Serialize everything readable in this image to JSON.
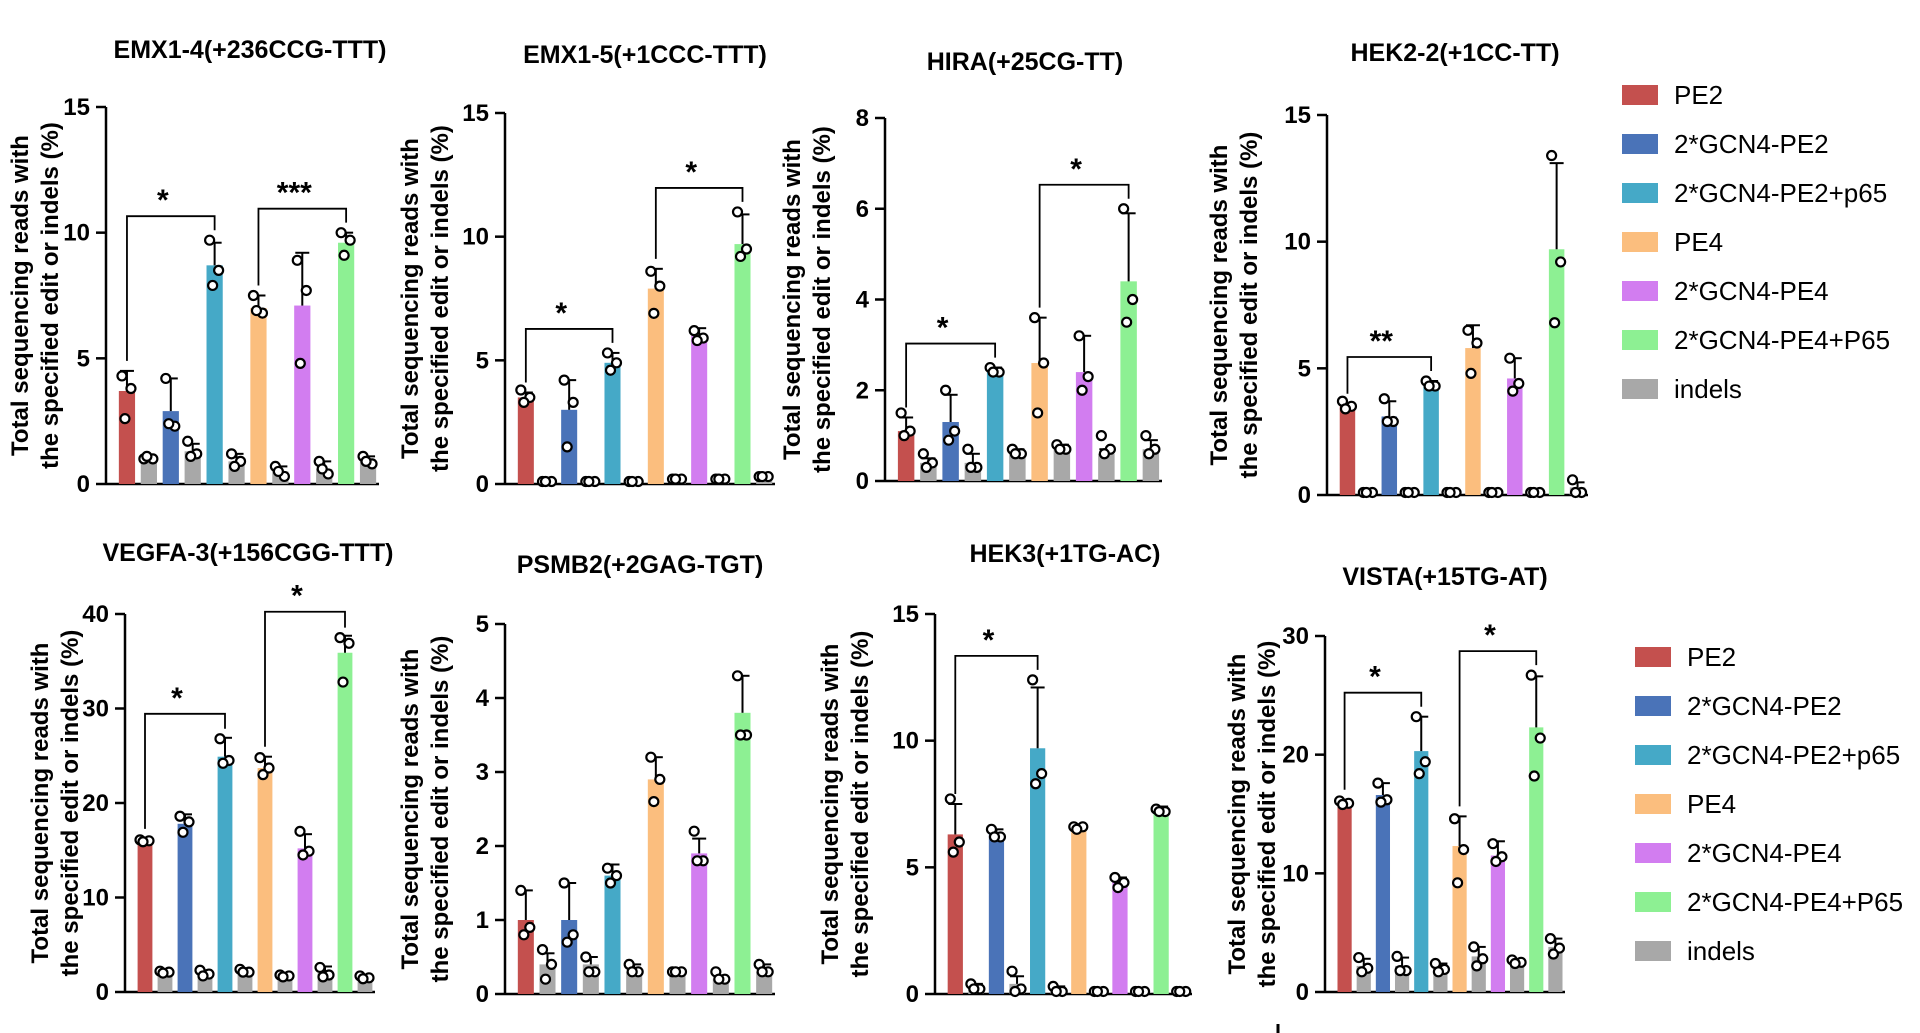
{
  "legend_top": [
    {
      "name": "PE2",
      "color": "#C4504E"
    },
    {
      "name": "2*GCN4-PE2",
      "color": "#4A73B8"
    },
    {
      "name": "2*GCN4-PE2+p65",
      "color": "#45A9C7"
    },
    {
      "name": "PE4",
      "color": "#FBBE7E"
    },
    {
      "name": "2*GCN4-PE4",
      "color": "#D27DF0"
    },
    {
      "name": "2*GCN4-PE4+P65",
      "color": "#8DF093"
    },
    {
      "name": "indels",
      "color": "#A8A8A8"
    }
  ],
  "legend_bottom": [
    {
      "name": "PE2",
      "color": "#C4504E"
    },
    {
      "name": "2*GCN4-PE2",
      "color": "#4A73B8"
    },
    {
      "name": "2*GCN4-PE2+p65",
      "color": "#45A9C7"
    },
    {
      "name": "PE4",
      "color": "#FBBE7E"
    },
    {
      "name": "2*GCN4-PE4",
      "color": "#D27DF0"
    },
    {
      "name": "2*GCN4-PE4+P65",
      "color": "#8DF093"
    },
    {
      "name": "indels",
      "color": "#A8A8A8"
    }
  ],
  "chart_data": [
    {
      "type": "bar",
      "title": "EMX1-4(+236CCG-TTT)",
      "ylabel": [
        "Total sequencing reads with",
        "the specified edit or indels (%)"
      ],
      "ylim": [
        0,
        15
      ],
      "yticks": [
        0,
        5,
        10,
        15
      ],
      "series_order": [
        "PE2",
        "indels",
        "2*GCN4-PE2",
        "indels",
        "2*GCN4-PE2+p65",
        "indels",
        "PE4",
        "indels",
        "2*GCN4-PE4",
        "indels",
        "2*GCN4-PE4+P65",
        "indels"
      ],
      "values": [
        3.7,
        1.0,
        2.9,
        1.3,
        8.7,
        0.9,
        7.0,
        0.5,
        7.1,
        0.6,
        9.6,
        0.9
      ],
      "errors": [
        0.8,
        0.1,
        1.3,
        0.3,
        0.9,
        0.3,
        0.5,
        0.2,
        2.1,
        0.3,
        0.4,
        0.2
      ],
      "points": [
        [
          4.3,
          3.8,
          2.6
        ],
        [
          1.0,
          1.0,
          1.1
        ],
        [
          4.2,
          2.3,
          2.4
        ],
        [
          1.7,
          1.2,
          1.1
        ],
        [
          9.7,
          8.5,
          7.9
        ],
        [
          1.2,
          0.9,
          0.7
        ],
        [
          7.5,
          6.8,
          6.9
        ],
        [
          0.7,
          0.3,
          0.5
        ],
        [
          8.9,
          7.7,
          4.8
        ],
        [
          0.9,
          0.4,
          0.6
        ],
        [
          10.0,
          9.7,
          9.1
        ],
        [
          1.1,
          0.8,
          0.9
        ]
      ],
      "significance": [
        {
          "from": 0,
          "to": 4,
          "label": "*"
        },
        {
          "from": 6,
          "to": 10,
          "label": "***"
        }
      ]
    },
    {
      "type": "bar",
      "title": "EMX1-5(+1CCC-TTT)",
      "ylabel": [
        "Total sequencing reads with",
        "the specified edit or indels (%)"
      ],
      "ylim": [
        0,
        15
      ],
      "yticks": [
        0,
        5,
        10,
        15
      ],
      "series_order": [
        "PE2",
        "indels",
        "2*GCN4-PE2",
        "indels",
        "2*GCN4-PE2+p65",
        "indels",
        "PE4",
        "indels",
        "2*GCN4-PE4",
        "indels",
        "2*GCN4-PE4+P65",
        "indels"
      ],
      "values": [
        3.5,
        0.1,
        3.0,
        0.1,
        4.9,
        0.1,
        7.9,
        0.2,
        6.0,
        0.2,
        9.7,
        0.3
      ],
      "errors": [
        0.2,
        0.05,
        1.2,
        0.05,
        0.4,
        0.05,
        0.8,
        0.05,
        0.3,
        0.05,
        1.2,
        0.05
      ],
      "points": [
        [
          3.8,
          3.5,
          3.3
        ],
        [
          0.1,
          0.1,
          0.1
        ],
        [
          4.2,
          3.3,
          1.5
        ],
        [
          0.1,
          0.1,
          0.1
        ],
        [
          5.3,
          4.9,
          4.6
        ],
        [
          0.1,
          0.1,
          0.1
        ],
        [
          8.6,
          8.0,
          6.9
        ],
        [
          0.2,
          0.2,
          0.2
        ],
        [
          6.2,
          5.9,
          5.8
        ],
        [
          0.2,
          0.2,
          0.2
        ],
        [
          11.0,
          9.5,
          9.2
        ],
        [
          0.3,
          0.3,
          0.3
        ]
      ],
      "significance": [
        {
          "from": 0,
          "to": 4,
          "label": "*"
        },
        {
          "from": 6,
          "to": 10,
          "label": "*"
        }
      ]
    },
    {
      "type": "bar",
      "title": "HIRA(+25CG-TT)",
      "ylabel": [
        "Total sequencing reads with",
        "the specified edit or indels (%)"
      ],
      "ylim": [
        0,
        8
      ],
      "yticks": [
        0,
        2,
        4,
        6,
        8
      ],
      "series_order": [
        "PE2",
        "indels",
        "2*GCN4-PE2",
        "indels",
        "2*GCN4-PE2+p65",
        "indels",
        "PE4",
        "indels",
        "2*GCN4-PE4",
        "indels",
        "2*GCN4-PE4+P65",
        "indels"
      ],
      "values": [
        1.1,
        0.4,
        1.3,
        0.4,
        2.4,
        0.6,
        2.6,
        0.7,
        2.4,
        0.6,
        4.4,
        0.7
      ],
      "errors": [
        0.3,
        0.1,
        0.6,
        0.2,
        0.1,
        0.1,
        1.0,
        0.1,
        0.8,
        0.1,
        1.5,
        0.2
      ],
      "points": [
        [
          1.5,
          1.1,
          1.0
        ],
        [
          0.6,
          0.4,
          0.3
        ],
        [
          2.0,
          1.1,
          0.9
        ],
        [
          0.7,
          0.3,
          0.3
        ],
        [
          2.5,
          2.4,
          2.4
        ],
        [
          0.7,
          0.6,
          0.6
        ],
        [
          3.6,
          2.6,
          1.5
        ],
        [
          0.8,
          0.7,
          0.7
        ],
        [
          3.2,
          2.3,
          2.0
        ],
        [
          1.0,
          0.7,
          0.6
        ],
        [
          6.0,
          4.0,
          3.5
        ],
        [
          1.0,
          0.7,
          0.6
        ]
      ],
      "significance": [
        {
          "from": 0,
          "to": 4,
          "label": "*"
        },
        {
          "from": 6,
          "to": 10,
          "label": "*"
        }
      ]
    },
    {
      "type": "bar",
      "title": "HEK2-2(+1CC-TT)",
      "ylabel": [
        "Total sequencing reads with",
        "the specified edit or indels (%)"
      ],
      "ylim": [
        0,
        15
      ],
      "yticks": [
        0,
        5,
        10,
        15
      ],
      "series_order": [
        "PE2",
        "indels",
        "2*GCN4-PE2",
        "indels",
        "2*GCN4-PE2+p65",
        "indels",
        "PE4",
        "indels",
        "2*GCN4-PE4",
        "indels",
        "2*GCN4-PE4+P65",
        "indels"
      ],
      "values": [
        3.5,
        0.1,
        3.1,
        0.1,
        4.3,
        0.1,
        5.8,
        0.1,
        4.6,
        0.1,
        9.7,
        0.3
      ],
      "errors": [
        0.1,
        0.05,
        0.6,
        0.05,
        0.2,
        0.05,
        0.9,
        0.05,
        0.8,
        0.05,
        3.4,
        0.2
      ],
      "points": [
        [
          3.7,
          3.5,
          3.4
        ],
        [
          0.1,
          0.1,
          0.1
        ],
        [
          3.8,
          2.9,
          2.9
        ],
        [
          0.1,
          0.1,
          0.1
        ],
        [
          4.5,
          4.3,
          4.3
        ],
        [
          0.1,
          0.1,
          0.1
        ],
        [
          6.5,
          6.0,
          4.8
        ],
        [
          0.1,
          0.1,
          0.1
        ],
        [
          5.4,
          4.4,
          4.1
        ],
        [
          0.1,
          0.1,
          0.1
        ],
        [
          13.4,
          9.2,
          6.8
        ],
        [
          0.6,
          0.1,
          0.1
        ]
      ],
      "significance": [
        {
          "from": 0,
          "to": 4,
          "label": "**"
        }
      ]
    },
    {
      "type": "bar",
      "title": "VEGFA-3(+156CGG-TTT)",
      "ylabel": [
        "Total sequencing reads with",
        "the specified edit or indels (%)"
      ],
      "ylim": [
        0,
        40
      ],
      "yticks": [
        0,
        10,
        20,
        30,
        40
      ],
      "series_order": [
        "PE2",
        "indels",
        "2*GCN4-PE2",
        "indels",
        "2*GCN4-PE2+p65",
        "indels",
        "PE4",
        "indels",
        "2*GCN4-PE4",
        "indels",
        "2*GCN4-PE4+P65",
        "indels"
      ],
      "values": [
        16.0,
        2.1,
        17.8,
        2.0,
        24.9,
        2.2,
        23.7,
        1.7,
        15.2,
        2.0,
        35.9,
        1.5
      ],
      "errors": [
        0.2,
        0.2,
        1.0,
        0.3,
        2.0,
        0.3,
        1.2,
        0.2,
        1.5,
        0.7,
        1.8,
        0.2
      ],
      "points": [
        [
          16.1,
          16.0,
          15.9
        ],
        [
          2.2,
          2.1,
          2.0
        ],
        [
          18.6,
          18.0,
          16.9
        ],
        [
          2.3,
          1.9,
          1.7
        ],
        [
          26.8,
          24.5,
          24.2
        ],
        [
          2.4,
          2.1,
          2.1
        ],
        [
          24.8,
          23.7,
          23.0
        ],
        [
          1.8,
          1.7,
          1.6
        ],
        [
          17.0,
          14.9,
          14.5
        ],
        [
          2.6,
          1.8,
          1.6
        ],
        [
          37.5,
          36.9,
          32.8
        ],
        [
          1.7,
          1.5,
          1.4
        ]
      ],
      "significance": [
        {
          "from": 0,
          "to": 4,
          "label": "*"
        },
        {
          "from": 6,
          "to": 10,
          "label": "*"
        }
      ]
    },
    {
      "type": "bar",
      "title": "PSMB2(+2GAG-TGT)",
      "ylabel": [
        "Total sequencing reads with",
        "the specified edit or indels (%)"
      ],
      "ylim": [
        0,
        5
      ],
      "yticks": [
        0,
        1,
        2,
        3,
        4,
        5
      ],
      "series_order": [
        "PE2",
        "indels",
        "2*GCN4-PE2",
        "indels",
        "2*GCN4-PE2+p65",
        "indels",
        "PE4",
        "indels",
        "2*GCN4-PE4",
        "indels",
        "2*GCN4-PE4+P65",
        "indels"
      ],
      "values": [
        1.0,
        0.4,
        1.0,
        0.4,
        1.6,
        0.3,
        2.9,
        0.3,
        1.9,
        0.2,
        3.8,
        0.3
      ],
      "errors": [
        0.4,
        0.15,
        0.5,
        0.1,
        0.15,
        0.1,
        0.3,
        0.05,
        0.2,
        0.05,
        0.5,
        0.1
      ],
      "points": [
        [
          1.4,
          0.9,
          0.8
        ],
        [
          0.6,
          0.4,
          0.2
        ],
        [
          1.5,
          0.8,
          0.7
        ],
        [
          0.5,
          0.3,
          0.3
        ],
        [
          1.7,
          1.6,
          1.5
        ],
        [
          0.4,
          0.3,
          0.3
        ],
        [
          3.2,
          2.9,
          2.6
        ],
        [
          0.3,
          0.3,
          0.3
        ],
        [
          2.2,
          1.8,
          1.8
        ],
        [
          0.3,
          0.2,
          0.2
        ],
        [
          4.3,
          3.5,
          3.5
        ],
        [
          0.4,
          0.3,
          0.3
        ]
      ],
      "significance": []
    },
    {
      "type": "bar",
      "title": "HEK3(+1TG-AC)",
      "ylabel": [
        "Total sequencing reads with",
        "the specified edit or indels (%)"
      ],
      "ylim": [
        0,
        15
      ],
      "yticks": [
        0,
        5,
        10,
        15
      ],
      "series_order": [
        "PE2",
        "indels",
        "2*GCN4-PE2",
        "indels",
        "2*GCN4-PE2+p65",
        "indels",
        "PE4",
        "indels",
        "2*GCN4-PE4",
        "indels",
        "2*GCN4-PE4+P65",
        "indels"
      ],
      "values": [
        6.3,
        0.3,
        6.3,
        0.4,
        9.7,
        0.2,
        6.6,
        0.1,
        4.4,
        0.1,
        7.2,
        0.1
      ],
      "errors": [
        1.2,
        0.1,
        0.2,
        0.3,
        2.4,
        0.1,
        0.1,
        0.05,
        0.2,
        0.05,
        0.2,
        0.05
      ],
      "points": [
        [
          7.7,
          6.0,
          5.6
        ],
        [
          0.4,
          0.2,
          0.2
        ],
        [
          6.5,
          6.2,
          6.2
        ],
        [
          0.9,
          0.2,
          0.1
        ],
        [
          12.4,
          8.7,
          8.3
        ],
        [
          0.3,
          0.1,
          0.1
        ],
        [
          6.6,
          6.6,
          6.5
        ],
        [
          0.1,
          0.1,
          0.1
        ],
        [
          4.6,
          4.4,
          4.2
        ],
        [
          0.1,
          0.1,
          0.1
        ],
        [
          7.3,
          7.2,
          7.2
        ],
        [
          0.1,
          0.1,
          0.1
        ]
      ],
      "significance": [
        {
          "from": 0,
          "to": 4,
          "label": "*"
        }
      ]
    },
    {
      "type": "bar",
      "title": "VISTA(+15TG-AT)",
      "ylabel": [
        "Total sequencing reads with",
        "the specified edit or indels (%)"
      ],
      "ylim": [
        0,
        30
      ],
      "yticks": [
        0,
        10,
        20,
        30
      ],
      "series_order": [
        "PE2",
        "indels",
        "2*GCN4-PE2",
        "indels",
        "2*GCN4-PE2+p65",
        "indels",
        "PE4",
        "indels",
        "2*GCN4-PE4",
        "indels",
        "2*GCN4-PE4+P65",
        "indels"
      ],
      "values": [
        15.9,
        2.2,
        16.6,
        2.2,
        20.3,
        2.0,
        12.3,
        3.0,
        11.5,
        2.5,
        22.3,
        3.8
      ],
      "errors": [
        0.3,
        0.6,
        1.0,
        0.7,
        2.9,
        0.4,
        2.5,
        0.8,
        1.2,
        0.2,
        4.3,
        0.7
      ],
      "points": [
        [
          16.1,
          15.9,
          15.8
        ],
        [
          2.9,
          2.0,
          1.7
        ],
        [
          17.6,
          16.2,
          16.0
        ],
        [
          3.0,
          1.8,
          1.8
        ],
        [
          23.2,
          19.4,
          18.4
        ],
        [
          2.4,
          1.9,
          1.7
        ],
        [
          14.6,
          12.0,
          9.2
        ],
        [
          3.8,
          2.8,
          2.2
        ],
        [
          12.5,
          11.4,
          11.0
        ],
        [
          2.7,
          2.5,
          2.4
        ],
        [
          26.7,
          21.4,
          18.2
        ],
        [
          4.5,
          3.7,
          3.2
        ]
      ],
      "significance": [
        {
          "from": 0,
          "to": 4,
          "label": "*"
        },
        {
          "from": 6,
          "to": 10,
          "label": "*"
        }
      ]
    }
  ]
}
